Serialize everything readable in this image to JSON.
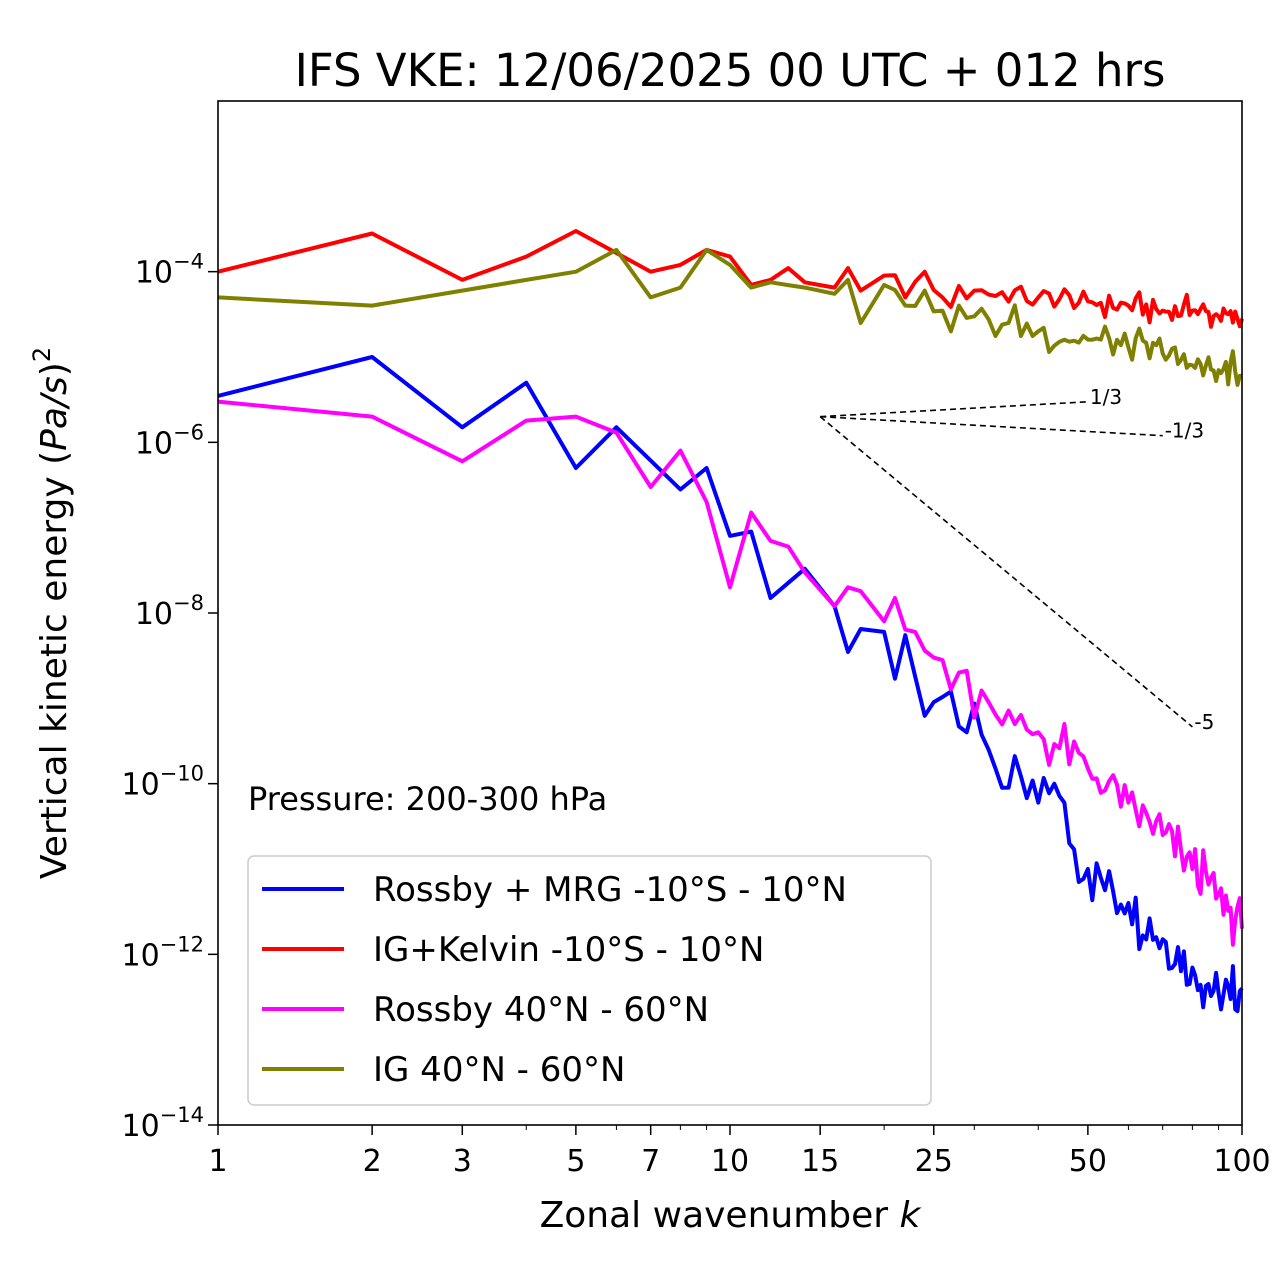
{
  "chart_data": {
    "type": "line",
    "title": "IFS VKE: 12/06/2025 00 UTC + 012 hrs",
    "xlabel_text": "Zonal wavenumber ",
    "xlabel_italic": "k",
    "ylabel_text": "Vertical kinetic energy (",
    "ylabel_italic": "Pa/s",
    "ylabel_close": ")",
    "ylabel_sup": "2",
    "xscale": "log",
    "yscale": "log",
    "xlim": [
      1,
      100
    ],
    "ylim": [
      1e-14,
      0.01
    ],
    "x_ticks": [
      1,
      2,
      3,
      5,
      7,
      10,
      15,
      25,
      50,
      100
    ],
    "x_tick_labels": [
      "1",
      "2",
      "3",
      "5",
      "7",
      "10",
      "15",
      "25",
      "50",
      "100"
    ],
    "y_ticks": [
      -14,
      -12,
      -10,
      -8,
      -6,
      -4
    ],
    "y_tick_base": "10",
    "y_tick_exponents": [
      "−14",
      "−12",
      "−10",
      "−8",
      "−6",
      "−4"
    ],
    "grid": false,
    "legend_position": "lower-left",
    "annotation": "Pressure: 200-300 hPa",
    "reference_slopes": [
      {
        "label": "1/3",
        "slope": 0.3333,
        "x0": 15,
        "y0": 2e-06,
        "x1": 50
      },
      {
        "label": "-1/3",
        "slope": -0.3333,
        "x0": 15,
        "y0": 2e-06,
        "x1": 70
      },
      {
        "label": "-5",
        "slope": -5,
        "x0": 15,
        "y0": 2e-06,
        "x1": 80
      }
    ],
    "series": [
      {
        "name": "Rossby + MRG -10°S - 10°N",
        "color": "#0000ff",
        "anchors": [
          [
            1,
            3.5e-06
          ],
          [
            2,
            1e-05
          ],
          [
            3,
            1.5e-06
          ],
          [
            4,
            5e-06
          ],
          [
            5,
            5e-07
          ],
          [
            6,
            1.5e-06
          ],
          [
            8,
            2.8e-07
          ],
          [
            9,
            5e-07
          ],
          [
            10,
            8e-08
          ],
          [
            11,
            9e-08
          ],
          [
            12,
            1.5e-08
          ],
          [
            14,
            3.3e-08
          ],
          [
            16,
            1.2e-08
          ],
          [
            17,
            3.5e-09
          ],
          [
            18,
            6.5e-09
          ],
          [
            20,
            6e-09
          ],
          [
            21,
            1.7e-09
          ],
          [
            22,
            5.5e-09
          ],
          [
            23,
            1.8e-09
          ],
          [
            25,
            9e-10
          ],
          [
            27,
            1.2e-09
          ],
          [
            29,
            4e-10
          ],
          [
            32,
            2.5e-10
          ],
          [
            35,
            9e-11
          ],
          [
            40,
            6e-11
          ],
          [
            43,
            1e-10
          ],
          [
            46,
            2e-11
          ],
          [
            50,
            1e-11
          ],
          [
            60,
            4e-12
          ],
          [
            70,
            1.5e-12
          ],
          [
            80,
            7e-13
          ],
          [
            90,
            3.5e-13
          ],
          [
            95,
            3e-13
          ],
          [
            100,
            4e-13
          ]
        ],
        "jitter": 0.35,
        "jitter_start": 20
      },
      {
        "name": "IG+Kelvin -10°S - 10°N",
        "color": "#ff0000",
        "anchors": [
          [
            1,
            0.0001
          ],
          [
            2,
            0.00028
          ],
          [
            3,
            8e-05
          ],
          [
            4,
            0.00015
          ],
          [
            5,
            0.0003
          ],
          [
            7,
            0.0001
          ],
          [
            8,
            0.00012
          ],
          [
            9,
            0.00018
          ],
          [
            10,
            0.00015
          ],
          [
            11,
            7e-05
          ],
          [
            12,
            8e-05
          ],
          [
            13,
            0.00011
          ],
          [
            14,
            7.5e-05
          ],
          [
            16,
            6.5e-05
          ],
          [
            17,
            0.00011
          ],
          [
            18,
            6e-05
          ],
          [
            20,
            9e-05
          ],
          [
            22,
            5e-05
          ],
          [
            24,
            0.0001
          ],
          [
            26,
            5e-05
          ],
          [
            30,
            6e-05
          ],
          [
            40,
            5e-05
          ],
          [
            50,
            4.5e-05
          ],
          [
            60,
            4e-05
          ],
          [
            70,
            3.5e-05
          ],
          [
            80,
            3.5e-05
          ],
          [
            90,
            3e-05
          ],
          [
            100,
            2.8e-05
          ]
        ],
        "jitter": 0.16,
        "jitter_start": 20
      },
      {
        "name": "Rossby 40°N - 60°N",
        "color": "#ff00ff",
        "anchors": [
          [
            1,
            3e-06
          ],
          [
            2,
            2e-06
          ],
          [
            3,
            6e-07
          ],
          [
            4,
            1.8e-06
          ],
          [
            5,
            2e-06
          ],
          [
            6,
            1.3e-06
          ],
          [
            7,
            3e-07
          ],
          [
            8,
            8e-07
          ],
          [
            9,
            2e-07
          ],
          [
            10,
            2e-08
          ],
          [
            11,
            1.5e-07
          ],
          [
            12,
            7e-08
          ],
          [
            13,
            6e-08
          ],
          [
            14,
            3e-08
          ],
          [
            16,
            1.2e-08
          ],
          [
            17,
            2e-08
          ],
          [
            18,
            1.8e-08
          ],
          [
            20,
            8e-09
          ],
          [
            21,
            1.5e-08
          ],
          [
            23,
            6e-09
          ],
          [
            25,
            3e-09
          ],
          [
            28,
            2e-09
          ],
          [
            32,
            9e-10
          ],
          [
            36,
            5e-10
          ],
          [
            40,
            4e-10
          ],
          [
            50,
            1.5e-10
          ],
          [
            60,
            6e-11
          ],
          [
            70,
            2.5e-11
          ],
          [
            80,
            1e-11
          ],
          [
            90,
            5e-12
          ],
          [
            100,
            2e-12
          ]
        ],
        "jitter": 0.3,
        "jitter_start": 20
      },
      {
        "name": "IG 40°N - 60°N",
        "color": "#808000",
        "anchors": [
          [
            1,
            5e-05
          ],
          [
            2,
            4e-05
          ],
          [
            3,
            6e-05
          ],
          [
            4,
            8e-05
          ],
          [
            5,
            0.0001
          ],
          [
            6,
            0.00018
          ],
          [
            7,
            5e-05
          ],
          [
            8,
            6.5e-05
          ],
          [
            9,
            0.00018
          ],
          [
            10,
            0.00012
          ],
          [
            11,
            6.5e-05
          ],
          [
            12,
            7.5e-05
          ],
          [
            14,
            6.5e-05
          ],
          [
            16,
            5.5e-05
          ],
          [
            17,
            8e-05
          ],
          [
            18,
            2.5e-05
          ],
          [
            20,
            7e-05
          ],
          [
            22,
            4e-05
          ],
          [
            24,
            6e-05
          ],
          [
            26,
            3.5e-05
          ],
          [
            30,
            3e-05
          ],
          [
            35,
            2.5e-05
          ],
          [
            40,
            2e-05
          ],
          [
            50,
            1.6e-05
          ],
          [
            60,
            1.3e-05
          ],
          [
            70,
            1.1e-05
          ],
          [
            80,
            8e-06
          ],
          [
            90,
            7e-06
          ],
          [
            100,
            6e-06
          ]
        ],
        "jitter": 0.22,
        "jitter_start": 20
      }
    ]
  }
}
